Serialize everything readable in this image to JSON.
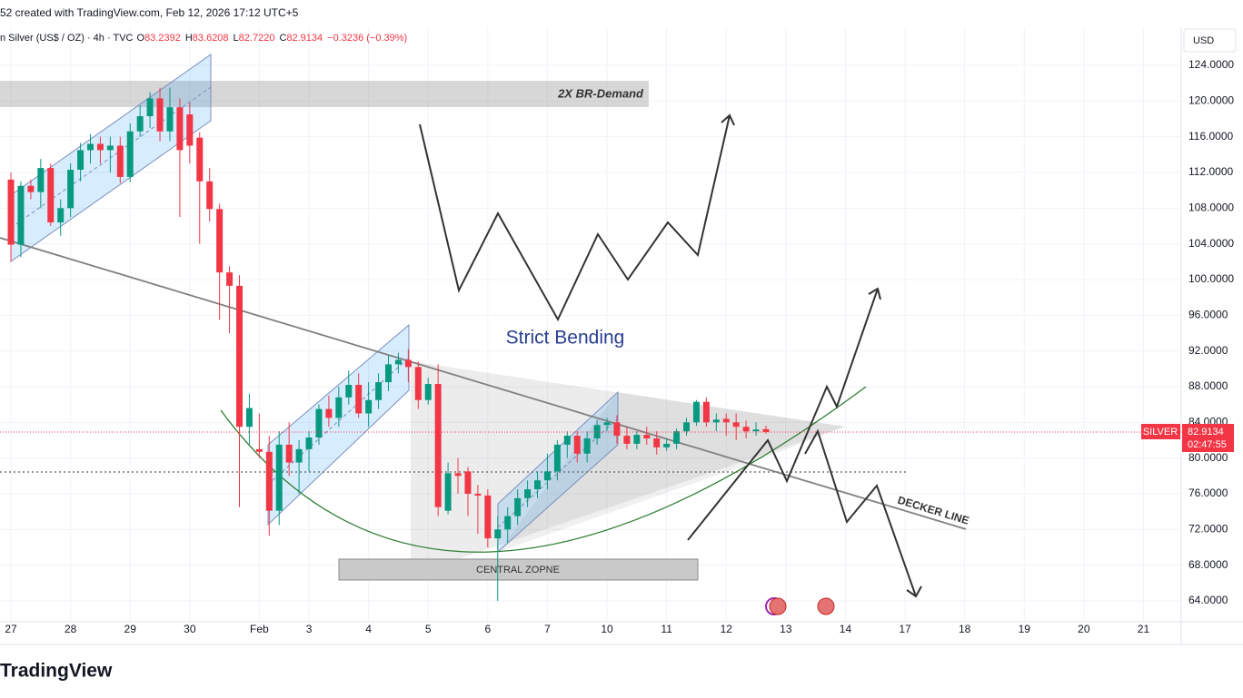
{
  "header": {
    "caption": "52 created with TradingView.com, Feb 12, 2026 17:12 UTC+5",
    "symbol": "n Silver (US$ / OZ) · 4h · TVC",
    "legend": [
      {
        "key": "O",
        "value": "83.2392"
      },
      {
        "key": "H",
        "value": "83.6208"
      },
      {
        "key": "L",
        "value": "82.7220"
      },
      {
        "key": "C",
        "value": "82.9134"
      }
    ],
    "change": "−0.3236 (−0.39%)",
    "currency": "USD",
    "logo": "TradingView"
  },
  "chart_data": {
    "type": "candlestick",
    "open": [
      111.2,
      103.9,
      110.5,
      109.8,
      112.5,
      106.4,
      108,
      112.3,
      114.5,
      115.2,
      114.5,
      115,
      111.5,
      116.6,
      118.3,
      120.3,
      116.6,
      119.3,
      118.5,
      115.9,
      111,
      107.9,
      100.8,
      99.3,
      83.5,
      81,
      80.7,
      74.1,
      81.5,
      79.5,
      81,
      82.3,
      85.5,
      84.5,
      86.8,
      88.2,
      85,
      86.5,
      88.5,
      90.5,
      91,
      90.2,
      86.5,
      88.3,
      74.1,
      78.3,
      78.5,
      76,
      75.8,
      71,
      72,
      73.5,
      75.5,
      76.5,
      77.5,
      78.5,
      81.5,
      82.5,
      80.5,
      82.2,
      83.7,
      84,
      82.5,
      81.6,
      82.6,
      82.2,
      81.2,
      81.6,
      83,
      84,
      86.3,
      84,
      84.4,
      84,
      83.5,
      83,
      83.2392
    ],
    "high": [
      112,
      111,
      111.2,
      113.5,
      113,
      109,
      113,
      115.3,
      116.3,
      116,
      116,
      116,
      117.5,
      119.5,
      121,
      121.5,
      121.5,
      120.3,
      119.8,
      116.5,
      112.5,
      108.5,
      101.5,
      100.5,
      87.2,
      85,
      82.5,
      83,
      84,
      82,
      83,
      86,
      87,
      88,
      89.8,
      89.5,
      88.5,
      89.5,
      91.5,
      91.8,
      92.2,
      90.8,
      89,
      90.5,
      79.5,
      80,
      79,
      77,
      76.5,
      73.5,
      74.5,
      76.5,
      77.5,
      78.5,
      80.5,
      82,
      83,
      83,
      83,
      84.3,
      84.5,
      84.8,
      83.5,
      83,
      83.5,
      83,
      82.2,
      83.3,
      84.5,
      86.5,
      86.8,
      85,
      85,
      85,
      84.2,
      84,
      83.6208
    ],
    "low": [
      102,
      102.5,
      109,
      108,
      106,
      104.9,
      107,
      111,
      113,
      113,
      112,
      110.8,
      110.9,
      116,
      117,
      115.5,
      115.5,
      107,
      113,
      104,
      106.5,
      95.5,
      94,
      74.5,
      81.5,
      80,
      71.3,
      72.5,
      78,
      76,
      78.5,
      81.5,
      83.5,
      83.5,
      86,
      84.5,
      83.5,
      85.5,
      87.5,
      89.5,
      88.5,
      85.5,
      86,
      73.5,
      73.7,
      76,
      73.5,
      71.5,
      70,
      64,
      70.5,
      72.5,
      74.5,
      75.5,
      76.5,
      77.5,
      80,
      79.5,
      79.5,
      81.5,
      83,
      81.6,
      81,
      81,
      81.5,
      80.4,
      80.8,
      81,
      82.5,
      83.6,
      83.5,
      83,
      82.5,
      82,
      82.2,
      82.5,
      82.722
    ],
    "close": [
      103.9,
      110.5,
      109.8,
      112.5,
      106.4,
      108,
      112.3,
      114.5,
      115.2,
      114.5,
      115,
      111.5,
      116.6,
      118.3,
      120.3,
      116.6,
      119.3,
      114.5,
      115,
      111,
      107.9,
      100.8,
      99.3,
      83.5,
      85.6,
      80.7,
      74.1,
      81.5,
      79.5,
      81,
      82.3,
      85.5,
      84.5,
      86.8,
      88.2,
      85,
      86.5,
      88.5,
      90.5,
      91,
      90.2,
      86.5,
      88.3,
      74.5,
      78.3,
      78,
      76,
      75.8,
      71,
      72,
      73.5,
      75.5,
      76.5,
      77.5,
      78.5,
      81.5,
      82.5,
      80.5,
      82.2,
      83.7,
      84,
      82.5,
      81.6,
      82.6,
      82.2,
      81.2,
      81.6,
      83,
      84,
      86.3,
      84,
      84.3,
      84,
      83.5,
      83,
      83.2,
      82.9134
    ],
    "up_color": "#089981",
    "down_color": "#f23645",
    "xlim": [
      -1.1,
      117.8
    ],
    "xticks": [
      {
        "value": 0,
        "label": "27"
      },
      {
        "value": 6,
        "label": "28"
      },
      {
        "value": 12,
        "label": "29"
      },
      {
        "value": 18,
        "label": "30"
      },
      {
        "value": 25,
        "label": "Feb"
      },
      {
        "value": 30,
        "label": "3"
      },
      {
        "value": 36,
        "label": "4"
      },
      {
        "value": 42,
        "label": "5"
      },
      {
        "value": 48,
        "label": "6"
      },
      {
        "value": 54,
        "label": "7"
      },
      {
        "value": 60,
        "label": "10"
      },
      {
        "value": 66,
        "label": "11"
      },
      {
        "value": 72,
        "label": "12"
      },
      {
        "value": 78,
        "label": "13"
      },
      {
        "value": 84,
        "label": "14"
      },
      {
        "value": 90,
        "label": "17"
      },
      {
        "value": 96,
        "label": "18"
      },
      {
        "value": 102,
        "label": "19"
      },
      {
        "value": 108,
        "label": "20"
      },
      {
        "value": 114,
        "label": "21"
      }
    ],
    "ylim": [
      59.32,
      128.27
    ],
    "yticks": [
      {
        "value": 64,
        "label": "64.0000"
      },
      {
        "value": 68,
        "label": "68.0000"
      },
      {
        "value": 72,
        "label": "72.0000"
      },
      {
        "value": 76,
        "label": "76.0000"
      },
      {
        "value": 80,
        "label": "80.0000"
      },
      {
        "value": 84,
        "label": "84.0000"
      },
      {
        "value": 88,
        "label": "88.0000"
      },
      {
        "value": 92,
        "label": "92.0000"
      },
      {
        "value": 96,
        "label": "96.0000"
      },
      {
        "value": 100,
        "label": "100.0000"
      },
      {
        "value": 104,
        "label": "104.0000"
      },
      {
        "value": 108,
        "label": "108.0000"
      },
      {
        "value": 112,
        "label": "112.0000"
      },
      {
        "value": 116,
        "label": "116.0000"
      },
      {
        "value": 120,
        "label": "120.0000"
      },
      {
        "value": 124,
        "label": "124.0000"
      }
    ],
    "grid": true,
    "last_price": 82.9134,
    "last_price_label": "SILVER",
    "countdown": "02:47:55",
    "annotations": [
      "2X BR-Demand",
      "Strict Bending",
      "CENTRAL ZOPNE",
      "DECKER LINE"
    ]
  }
}
